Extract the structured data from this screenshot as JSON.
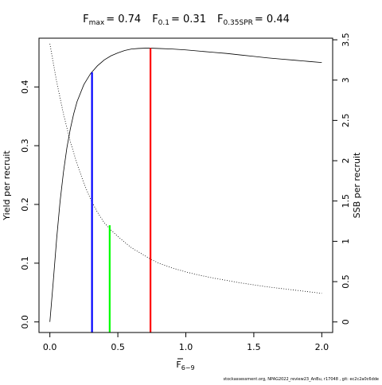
{
  "chart_data": {
    "type": "line",
    "title": {
      "parts": [
        {
          "main": "F",
          "sub": "max",
          "value": "= 0.74"
        },
        {
          "main": "F",
          "sub": "0.1",
          "value": "= 0.31"
        },
        {
          "main": "F",
          "sub": "0.35SPR",
          "value": "= 0.44"
        }
      ]
    },
    "xlabel": {
      "main": "F",
      "sub": "6−9",
      "overline": true
    },
    "ylabel_left": "Yield per recruit",
    "ylabel_right": "SSB per recruit",
    "xlim": [
      -0.08,
      2.08
    ],
    "ylim_left": [
      -0.018,
      0.483
    ],
    "ylim_right": [
      -0.131,
      3.52
    ],
    "x_ticks": [
      {
        "value": 0.0,
        "label": "0.0"
      },
      {
        "value": 0.5,
        "label": "0.5"
      },
      {
        "value": 1.0,
        "label": "1.0"
      },
      {
        "value": 1.5,
        "label": "1.5"
      },
      {
        "value": 2.0,
        "label": "2.0"
      }
    ],
    "y_left_ticks": [
      {
        "value": 0.0,
        "label": "0.0"
      },
      {
        "value": 0.1,
        "label": "0.1"
      },
      {
        "value": 0.2,
        "label": "0.2"
      },
      {
        "value": 0.3,
        "label": "0.3"
      },
      {
        "value": 0.4,
        "label": "0.4"
      }
    ],
    "y_right_ticks": [
      {
        "value": 0.0,
        "label": "0"
      },
      {
        "value": 0.5,
        "label": "0.5"
      },
      {
        "value": 1.0,
        "label": "1"
      },
      {
        "value": 1.5,
        "label": "1.5"
      },
      {
        "value": 2.0,
        "label": "2"
      },
      {
        "value": 2.5,
        "label": "2.5"
      },
      {
        "value": 3.0,
        "label": "3"
      },
      {
        "value": 3.5,
        "label": "3.5"
      }
    ],
    "series": [
      {
        "axis": "left",
        "style": "solid",
        "color": "#000000",
        "x": [
          0.0,
          0.025,
          0.05,
          0.075,
          0.1,
          0.125,
          0.15,
          0.175,
          0.2,
          0.25,
          0.3,
          0.35,
          0.4,
          0.45,
          0.5,
          0.55,
          0.6,
          0.65,
          0.7,
          0.74,
          0.8,
          0.9,
          1.0,
          1.1,
          1.2,
          1.3,
          1.4,
          1.5,
          1.6,
          1.7,
          1.8,
          1.9,
          2.0
        ],
        "y": [
          0.0,
          0.069,
          0.142,
          0.205,
          0.255,
          0.296,
          0.328,
          0.354,
          0.375,
          0.404,
          0.423,
          0.436,
          0.446,
          0.453,
          0.458,
          0.462,
          0.4645,
          0.4655,
          0.466,
          0.466,
          0.4655,
          0.4645,
          0.463,
          0.461,
          0.459,
          0.457,
          0.4545,
          0.452,
          0.4495,
          0.4475,
          0.4455,
          0.4435,
          0.4415
        ]
      },
      {
        "axis": "right",
        "style": "dotted",
        "color": "#000000",
        "x": [
          0.0,
          0.05,
          0.1,
          0.15,
          0.2,
          0.25,
          0.3,
          0.35,
          0.4,
          0.45,
          0.5,
          0.6,
          0.7,
          0.74,
          0.8,
          0.9,
          1.0,
          1.1,
          1.2,
          1.3,
          1.4,
          1.5,
          1.6,
          1.7,
          1.8,
          1.9,
          2.0
        ],
        "y": [
          3.45,
          2.98,
          2.58,
          2.24,
          1.96,
          1.72,
          1.52,
          1.36,
          1.23,
          1.14,
          1.06,
          0.92,
          0.82,
          0.78,
          0.73,
          0.67,
          0.62,
          0.58,
          0.545,
          0.515,
          0.485,
          0.46,
          0.435,
          0.415,
          0.395,
          0.375,
          0.355
        ]
      }
    ],
    "reference_lines": [
      {
        "name": "F0.1",
        "x": 0.31,
        "y": 0.425,
        "axis": "left",
        "color": "#0000ff"
      },
      {
        "name": "F0.35SPR",
        "x": 0.44,
        "y": 1.2,
        "axis": "right",
        "color": "#00ff00"
      },
      {
        "name": "Fmax",
        "x": 0.74,
        "y": 0.466,
        "axis": "left",
        "color": "#ff0000"
      }
    ],
    "footer": "stockassessment.org, NPAG2022_review23_AnBu, r17048 , git: ec2c2a0c6dde"
  }
}
